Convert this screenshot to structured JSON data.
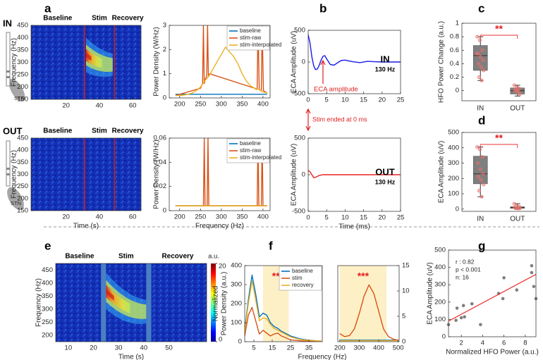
{
  "labels": {
    "panels": [
      "a",
      "b",
      "c",
      "d",
      "e",
      "f",
      "g"
    ],
    "in": "IN",
    "out": "OUT",
    "stn": [
      "STN",
      "STN"
    ]
  },
  "chart_data": [
    {
      "type": "heatmap",
      "annotations": [
        "Baseline",
        "Stim",
        "Recovery"
      ],
      "ylabel": "Frequency (Hz)",
      "xlim": [
        -1,
        65
      ],
      "xticks": [
        20,
        40,
        60
      ],
      "ylim": [
        150,
        450
      ],
      "yticks": [
        150,
        200,
        250,
        300,
        350,
        400,
        450
      ],
      "stim_lines": [
        31,
        49
      ],
      "hfo_band": {
        "x": [
          32,
          48
        ],
        "values": [
          330,
          290
        ]
      }
    },
    {
      "type": "line",
      "ylabel": "Power Density (W/Hz)",
      "legend": "upper right",
      "xlim": [
        175,
        417
      ],
      "xticks": [
        200,
        250,
        300,
        350,
        400
      ],
      "ylim": [
        0,
        3
      ],
      "yticks": [
        0,
        1,
        2,
        3
      ],
      "x": [
        190,
        200,
        210,
        220,
        230,
        240,
        250,
        260,
        270,
        280,
        290,
        300,
        310,
        320,
        330,
        340,
        350,
        360,
        370,
        380,
        390,
        400,
        410
      ],
      "series": [
        {
          "name": "baseline",
          "color": "#0072BD",
          "values": [
            0.15,
            0.15,
            0.15,
            0.15,
            0.15,
            0.15,
            0.15,
            0.15,
            0.15,
            0.15,
            0.15,
            0.15,
            0.15,
            0.15,
            0.15,
            0.15,
            0.15,
            0.15,
            0.15,
            0.15,
            0.15,
            0.15,
            0.15
          ]
        },
        {
          "name": "stim-raw",
          "color": "#D95319",
          "x": [
            190,
            250,
            255,
            257,
            259,
            262,
            265,
            267,
            269,
            272,
            380,
            384,
            386,
            388,
            391,
            394,
            396,
            398,
            401,
            410
          ],
          "values": [
            0.1,
            0.4,
            0.6,
            3,
            0.6,
            0.8,
            0.9,
            3,
            0.9,
            1.0,
            0.4,
            0.35,
            0.4,
            3,
            0.35,
            0.3,
            0.3,
            3,
            0.3,
            0.2
          ]
        },
        {
          "name": "stim-interpolated",
          "color": "#EDB120",
          "values": [
            0.1,
            0.1,
            0.12,
            0.15,
            0.2,
            0.3,
            0.45,
            0.7,
            0.9,
            1.2,
            1.5,
            1.8,
            2.1,
            1.9,
            1.7,
            1.4,
            1.0,
            0.7,
            0.5,
            0.4,
            0.35,
            0.25,
            0.2
          ]
        }
      ]
    },
    {
      "type": "heatmap",
      "annotations": [
        "Baseline",
        "Stim",
        "Recovery"
      ],
      "ylabel": "Frequency (Hz)",
      "xlabel": "Time (s)",
      "xlim": [
        -1,
        65
      ],
      "xticks": [
        20,
        40,
        60
      ],
      "ylim": [
        150,
        450
      ],
      "yticks": [
        150,
        200,
        250,
        300,
        350,
        400,
        450
      ],
      "stim_lines": [
        31,
        49
      ]
    },
    {
      "type": "line",
      "ylabel": "Power Density (W/Hz)",
      "xlabel": "Frequency (Hz)",
      "legend": "upper right",
      "xlim": [
        175,
        417
      ],
      "xticks": [
        200,
        250,
        300,
        350,
        400
      ],
      "ylim": [
        0,
        0.06
      ],
      "yticks": [
        0,
        0.02,
        0.04,
        0.06
      ],
      "x": [
        190,
        410
      ],
      "series": [
        {
          "name": "baseline",
          "color": "#0072BD",
          "values": [
            0.004,
            0.004
          ]
        },
        {
          "name": "stim-raw",
          "color": "#D95319",
          "x": [
            190,
            257,
            259,
            261,
            266,
            268,
            270,
            386,
            388,
            390,
            396,
            398,
            400,
            410
          ],
          "values": [
            0.004,
            0.004,
            0.06,
            0.004,
            0.004,
            0.06,
            0.004,
            0.004,
            0.06,
            0.004,
            0.004,
            0.06,
            0.004,
            0.004
          ]
        },
        {
          "name": "stim-interpolated",
          "color": "#EDB120",
          "values": [
            0.004,
            0.004
          ]
        }
      ]
    },
    {
      "type": "line",
      "ylabel": "ECA Amplitude (uV)",
      "label": "IN",
      "sublabel": "130 Hz",
      "annotation": "ECA amplitude",
      "xlim": [
        0,
        25
      ],
      "xticks": [
        0,
        5,
        10,
        15,
        20,
        25
      ],
      "ylim": [
        -500,
        500
      ],
      "yticks": [
        -500,
        0,
        500
      ],
      "x": [
        0,
        0.5,
        1,
        1.5,
        2,
        2.5,
        3,
        3.5,
        4,
        4.5,
        5,
        6,
        7,
        8,
        9,
        10,
        12,
        14,
        16,
        18,
        20,
        22,
        25
      ],
      "series": [
        {
          "color": "#1a1aee",
          "values": [
            430,
            300,
            80,
            -60,
            -120,
            -110,
            -50,
            30,
            90,
            100,
            50,
            -40,
            -50,
            -10,
            25,
            30,
            5,
            -10,
            10,
            5,
            0,
            0,
            0
          ]
        }
      ]
    },
    {
      "type": "line",
      "ylabel": "ECA Amplitude (uV)",
      "xlabel": "Time (ms)",
      "label": "OUT",
      "sublabel": "130 Hz",
      "note": "Stim ended at 0 ms",
      "xlim": [
        0,
        25
      ],
      "xticks": [
        0,
        5,
        10,
        15,
        20,
        25
      ],
      "ylim": [
        -500,
        500
      ],
      "yticks": [
        -500,
        0,
        500
      ],
      "x": [
        0,
        0.5,
        1,
        1.5,
        2,
        3,
        4,
        5,
        10,
        15,
        20,
        25
      ],
      "series": [
        {
          "color": "#ee2020",
          "values": [
            60,
            40,
            0,
            -40,
            -35,
            -10,
            0,
            0,
            0,
            0,
            0,
            0
          ]
        }
      ]
    },
    {
      "type": "box",
      "ylabel": "HFO Power Change (a.u.)",
      "categories": [
        "IN",
        "OUT"
      ],
      "sig": "**",
      "ylim": [
        -0.15,
        1
      ],
      "yticks": [
        0,
        0.2,
        0.4,
        0.6,
        0.8,
        1
      ],
      "color": "#7f7f7f",
      "point_color": "#e8706c",
      "boxes": [
        {
          "low": 0.15,
          "q1": 0.3,
          "median": 0.52,
          "q3": 0.67,
          "high": 0.8
        },
        {
          "low": -0.08,
          "q1": -0.05,
          "median": 0,
          "q3": 0.04,
          "high": 0.08
        }
      ],
      "points": [
        [
          0.8,
          0.75,
          0.6,
          0.55,
          0.5,
          0.45,
          0.4,
          0.35,
          0.3,
          0.2,
          0.15,
          0.55
        ],
        [
          0.08,
          0.05,
          0.03,
          0,
          -0.02,
          -0.05,
          0.02,
          0
        ]
      ]
    },
    {
      "type": "box",
      "ylabel": "ECA Amplitude (uV)",
      "categories": [
        "IN",
        "OUT"
      ],
      "sig": "**",
      "ylim": [
        -15,
        500
      ],
      "yticks": [
        0,
        100,
        200,
        300,
        400,
        500
      ],
      "color": "#7f7f7f",
      "point_color": "#e8706c",
      "boxes": [
        {
          "low": 80,
          "q1": 165,
          "median": 230,
          "q3": 345,
          "high": 405
        },
        {
          "low": 0,
          "q1": 5,
          "median": 10,
          "q3": 15,
          "high": 35
        }
      ],
      "points": [
        [
          405,
          390,
          340,
          300,
          260,
          230,
          210,
          190,
          160,
          120,
          80
        ],
        [
          35,
          20,
          15,
          10,
          8,
          5,
          5,
          3
        ]
      ]
    },
    {
      "type": "heatmap",
      "annotations": [
        "Baseline",
        "Stim",
        "Recovery"
      ],
      "ylabel": "Frequency (Hz)",
      "xlabel": "Time (s)",
      "xlim": [
        5,
        65
      ],
      "xticks": [
        10,
        20,
        30,
        40,
        50
      ],
      "ylim": [
        175,
        475
      ],
      "yticks": [
        200,
        250,
        300,
        350,
        400,
        450
      ],
      "artifact_bands": [
        [
          23,
          25
        ],
        [
          41,
          43
        ]
      ],
      "hfo_band": {
        "x": [
          25,
          41
        ],
        "values": [
          370,
          290
        ]
      },
      "colorbar": {
        "label": "a.u.",
        "clim": [
          0,
          20
        ],
        "ticks": [
          0,
          20
        ]
      }
    },
    {
      "type": "line",
      "ylabel": [
        "Normalized",
        "Power Density (a.u.)"
      ],
      "xlabel": "Frequency (Hz)",
      "legend": "upper right",
      "highlight": [
        10,
        24
      ],
      "sig": "**",
      "xlim": [
        0,
        42.3
      ],
      "xticks": [
        5,
        15,
        25,
        35
      ],
      "ylim": [
        0,
        400
      ],
      "yticks": [
        0,
        100,
        200,
        300,
        400
      ],
      "x": [
        0,
        2,
        4,
        6,
        8,
        10,
        12,
        14,
        16,
        18,
        20,
        25,
        30,
        35,
        40,
        42
      ],
      "series": [
        {
          "name": "baseline",
          "color": "#0072BD",
          "values": [
            60,
            220,
            350,
            250,
            130,
            150,
            140,
            100,
            80,
            70,
            55,
            30,
            15,
            8,
            4,
            3
          ]
        },
        {
          "name": "stim",
          "color": "#D95319",
          "values": [
            30,
            140,
            180,
            110,
            40,
            60,
            45,
            30,
            40,
            45,
            30,
            10,
            5,
            3,
            2,
            2
          ]
        },
        {
          "name": "recovery",
          "color": "#EDB120",
          "values": [
            50,
            200,
            320,
            220,
            110,
            125,
            120,
            90,
            70,
            60,
            50,
            25,
            12,
            7,
            4,
            3
          ]
        }
      ]
    },
    {
      "type": "line",
      "highlight": [
        200,
        440
      ],
      "sig": "***",
      "xlim": [
        190,
        505
      ],
      "xticks": [
        200,
        300,
        400,
        500
      ],
      "y2lim": [
        0,
        15
      ],
      "y2ticks": [
        0,
        5,
        10,
        15
      ],
      "x": [
        200,
        225,
        250,
        275,
        300,
        325,
        350,
        375,
        400,
        425,
        450,
        475,
        500
      ],
      "series": [
        {
          "color": "#0072BD",
          "axis": "y2",
          "values": [
            0.3,
            0.3,
            0.3,
            0.3,
            0.3,
            0.3,
            0.3,
            0.3,
            0.3,
            0.3,
            0.3,
            0.3,
            0.3
          ]
        },
        {
          "color": "#D95319",
          "axis": "y2",
          "values": [
            1.6,
            1,
            1.2,
            2.5,
            5.5,
            9,
            11.2,
            9.5,
            6,
            2.5,
            1,
            0.5,
            0.3
          ]
        },
        {
          "color": "#EDB120",
          "axis": "y2",
          "values": [
            0.2,
            0.2,
            0.2,
            0.2,
            0.2,
            0.2,
            0.2,
            0.2,
            0.2,
            0.2,
            0.2,
            0.2,
            0.2
          ]
        }
      ]
    },
    {
      "type": "scatter",
      "ylabel": "ECA Amplitude (uV)",
      "xlabel": "Normalized HFO Power (a.u.)",
      "stats": [
        "r : 0.82",
        "p < 0.001",
        "n: 16"
      ],
      "color": "#7f7f7f",
      "xlim": [
        0.8,
        9.0
      ],
      "xticks": [
        2,
        4,
        6,
        8
      ],
      "ylim": [
        0,
        500
      ],
      "yticks": [
        0,
        100,
        200,
        300,
        400,
        500
      ],
      "x": [
        0.8,
        1.5,
        1.6,
        2.0,
        2.2,
        2.3,
        3.0,
        3.8,
        5.5,
        5.9,
        6.0,
        7.2,
        8.6,
        8.6,
        8.8,
        9.0
      ],
      "values": [
        70,
        95,
        165,
        110,
        180,
        115,
        190,
        70,
        250,
        220,
        340,
        270,
        410,
        370,
        290,
        220
      ],
      "fit": {
        "color": "#e83030",
        "x": [
          0.8,
          9.0
        ],
        "values": [
          90,
          360
        ]
      }
    }
  ]
}
